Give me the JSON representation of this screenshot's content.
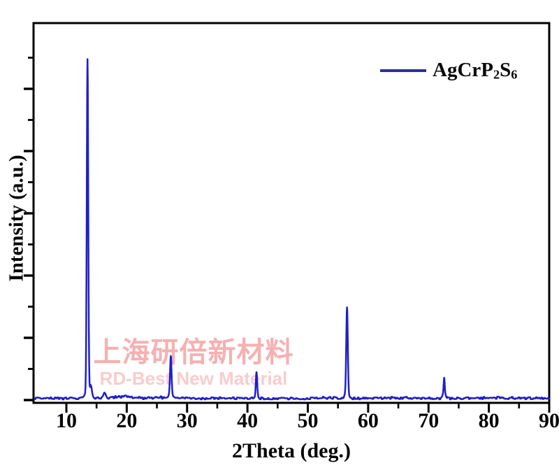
{
  "figure": {
    "background_color": "#ffffff",
    "axis_color": "#000000",
    "watermark": {
      "line1": "上海研倍新材料",
      "line1_color": "#f5b1b1",
      "line2": "RD-Best New Material",
      "line2_color": "#f9cccc"
    },
    "legend": {
      "line_color": "#28309f",
      "label_main_1": "AgCrP",
      "label_sub_1": "2",
      "label_main_2": "S",
      "label_sub_2": "6"
    }
  },
  "chart_data": {
    "type": "line",
    "title": "",
    "xlabel": "2Theta (deg.)",
    "ylabel": "Intensity (a.u.)",
    "x_axis": {
      "min": 4.7,
      "max": 90.1,
      "tick_labels": [
        "10",
        "20",
        "30",
        "40",
        "50",
        "60",
        "70",
        "80",
        "90"
      ],
      "tick_values": [
        10,
        20,
        30,
        40,
        50,
        60,
        70,
        80,
        90
      ],
      "minor_tick_values": [
        15,
        25,
        35,
        45,
        55,
        65,
        75,
        85
      ]
    },
    "y_axis": {
      "numeric_labels_shown": false,
      "units": "arbitrary units",
      "major_tick_count": 6,
      "minor_tick_count": 6
    },
    "legend_position": "top-right-inside",
    "grid": false,
    "series": [
      {
        "name": "AgCrP2S6",
        "color": "#1f1fca",
        "baseline_level": 0.006,
        "noise_amplitude": 0.0032,
        "peaks": [
          {
            "two_theta": 13.5,
            "rel_intensity": 1.0,
            "fwhm": 0.28,
            "foot_intensity": 0.025,
            "foot_fwhm": 0.85
          },
          {
            "two_theta": 14.05,
            "rel_intensity": 0.028,
            "fwhm": 0.45,
            "shoulder": true
          },
          {
            "two_theta": 16.3,
            "rel_intensity": 0.016,
            "fwhm": 0.5,
            "shoulder": true
          },
          {
            "two_theta": 27.3,
            "rel_intensity": 0.127,
            "fwhm": 0.28,
            "foot_intensity": 0.012,
            "foot_fwhm": 0.7
          },
          {
            "two_theta": 41.5,
            "rel_intensity": 0.075,
            "fwhm": 0.26,
            "foot_intensity": 0.008,
            "foot_fwhm": 0.6
          },
          {
            "two_theta": 56.5,
            "rel_intensity": 0.268,
            "fwhm": 0.3,
            "foot_intensity": 0.013,
            "foot_fwhm": 0.8
          },
          {
            "two_theta": 72.6,
            "rel_intensity": 0.059,
            "fwhm": 0.2,
            "foot_intensity": 0.016,
            "foot_fwhm": 0.6
          }
        ],
        "noise_bumps": [
          {
            "from": 16.9,
            "to": 22.5,
            "amplitude": 0.008
          },
          {
            "from": 23.2,
            "to": 26.6,
            "amplitude": 0.004
          },
          {
            "from": 28.3,
            "to": 31.5,
            "amplitude": 0.003
          },
          {
            "from": 50.5,
            "to": 55.5,
            "amplitude": 0.0025
          },
          {
            "from": 58.0,
            "to": 71.0,
            "amplitude": 0.002
          },
          {
            "from": 74.0,
            "to": 88.0,
            "amplitude": 0.002
          }
        ]
      }
    ]
  }
}
